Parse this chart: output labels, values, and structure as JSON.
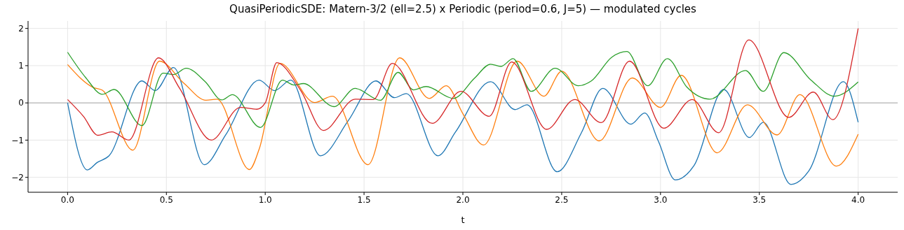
{
  "chart_data": {
    "type": "line",
    "title": "QuasiPeriodicSDE: Matern-3/2 (ell=2.5) x Periodic (period=0.6, J=5) — modulated cycles",
    "xlabel": "t",
    "xlim": [
      -0.2,
      4.2
    ],
    "ylim": [
      -2.4,
      2.2
    ],
    "xticks": [
      {
        "value": 0,
        "label": "0.0"
      },
      {
        "value": 0.5,
        "label": "0.5"
      },
      {
        "value": 1,
        "label": "1.0"
      },
      {
        "value": 1.5,
        "label": "1.5"
      },
      {
        "value": 2,
        "label": "2.0"
      },
      {
        "value": 2.5,
        "label": "2.5"
      },
      {
        "value": 3,
        "label": "3.0"
      },
      {
        "value": 3.5,
        "label": "3.5"
      },
      {
        "value": 4,
        "label": "4.0"
      }
    ],
    "yticks": [
      {
        "value": -2,
        "label": "−2"
      },
      {
        "value": -1,
        "label": "−1"
      },
      0,
      1,
      2
    ],
    "grid": true,
    "ref_lines": [
      {
        "axis": "y",
        "value": 0,
        "color": "#aaaaaa"
      }
    ],
    "series": [
      {
        "color": "#1f77b4",
        "x": [
          0,
          0.1,
          0.15,
          0.21,
          0.376,
          0.443,
          0.536,
          0.692,
          0.8,
          0.969,
          1.047,
          1.129,
          1.28,
          1.42,
          1.56,
          1.654,
          1.714,
          1.874,
          1.963,
          2.14,
          2.264,
          2.325,
          2.477,
          2.6,
          2.708,
          2.85,
          2.92,
          2.99,
          3.075,
          3.17,
          3.32,
          3.45,
          3.52,
          3.66,
          3.75,
          3.925,
          4.0
        ],
        "values": [
          0,
          -1.8,
          -1.6,
          -1.42,
          0.59,
          0.33,
          0.95,
          -1.66,
          -0.86,
          0.61,
          0.33,
          0.61,
          -1.42,
          -0.48,
          0.59,
          0.14,
          0.25,
          -1.42,
          -0.78,
          0.57,
          -0.18,
          -0.05,
          -1.85,
          -0.8,
          0.39,
          -0.57,
          -0.27,
          -1.04,
          -2.07,
          -1.68,
          0.36,
          -0.93,
          -0.52,
          -2.19,
          -1.83,
          0.57,
          -0.52
        ]
      },
      {
        "color": "#ff7f0e",
        "x": [
          0,
          0.128,
          0.176,
          0.33,
          0.465,
          0.59,
          0.7,
          0.756,
          0.92,
          0.97,
          1.075,
          1.25,
          1.34,
          1.52,
          1.68,
          1.83,
          1.916,
          2.0,
          2.105,
          2.275,
          2.41,
          2.5,
          2.69,
          2.857,
          3.0,
          3.105,
          3.287,
          3.44,
          3.59,
          3.705,
          3.89,
          4.0
        ],
        "values": [
          1.03,
          0.42,
          0.34,
          -1.27,
          1.12,
          0.52,
          0.07,
          0.1,
          -1.79,
          -1.23,
          1.06,
          0.01,
          0.18,
          -1.66,
          1.21,
          0.12,
          0.46,
          -0.29,
          -1.13,
          1.12,
          0.18,
          0.85,
          -1.02,
          0.67,
          -0.12,
          0.74,
          -1.34,
          -0.05,
          -0.86,
          0.22,
          -1.7,
          -0.84
        ]
      },
      {
        "color": "#2ca02c",
        "x": [
          0,
          0.093,
          0.176,
          0.235,
          0.376,
          0.483,
          0.536,
          0.6,
          0.696,
          0.78,
          0.834,
          0.976,
          1.087,
          1.146,
          1.193,
          1.348,
          1.455,
          1.583,
          1.672,
          1.75,
          1.814,
          1.952,
          2.06,
          2.14,
          2.193,
          2.254,
          2.346,
          2.467,
          2.584,
          2.65,
          2.754,
          2.83,
          2.935,
          3.035,
          3.134,
          3.25,
          3.43,
          3.52,
          3.624,
          3.762,
          3.88,
          4.0
        ],
        "values": [
          1.36,
          0.67,
          0.23,
          0.36,
          -0.61,
          0.8,
          0.76,
          0.93,
          0.57,
          0.08,
          0.22,
          -0.66,
          0.61,
          0.48,
          0.52,
          -0.1,
          0.39,
          0.07,
          0.82,
          0.35,
          0.44,
          0.12,
          0.67,
          1.04,
          0.98,
          1.19,
          0.31,
          0.93,
          0.46,
          0.59,
          1.23,
          1.38,
          0.46,
          1.19,
          0.42,
          0.1,
          0.87,
          0.31,
          1.35,
          0.61,
          0.18,
          0.56
        ]
      },
      {
        "color": "#d62728",
        "x": [
          0,
          0.08,
          0.153,
          0.224,
          0.31,
          0.46,
          0.567,
          0.727,
          0.874,
          0.958,
          1.0,
          1.058,
          1.18,
          1.295,
          1.455,
          1.547,
          1.643,
          1.845,
          1.99,
          2.133,
          2.247,
          2.424,
          2.566,
          2.7,
          2.843,
          3.017,
          3.16,
          3.294,
          3.447,
          3.649,
          3.773,
          3.872,
          4.0
        ],
        "values": [
          0.09,
          -0.36,
          -0.87,
          -0.78,
          -1.0,
          1.21,
          0.39,
          -1.0,
          -0.12,
          -0.17,
          0.0,
          1.08,
          0.33,
          -0.74,
          0.1,
          0.09,
          1.06,
          -0.55,
          0.31,
          -0.36,
          1.1,
          -0.71,
          0.09,
          -0.53,
          1.12,
          -0.68,
          0.09,
          -0.8,
          1.69,
          -0.39,
          0.29,
          -0.45,
          2.0
        ]
      }
    ]
  }
}
